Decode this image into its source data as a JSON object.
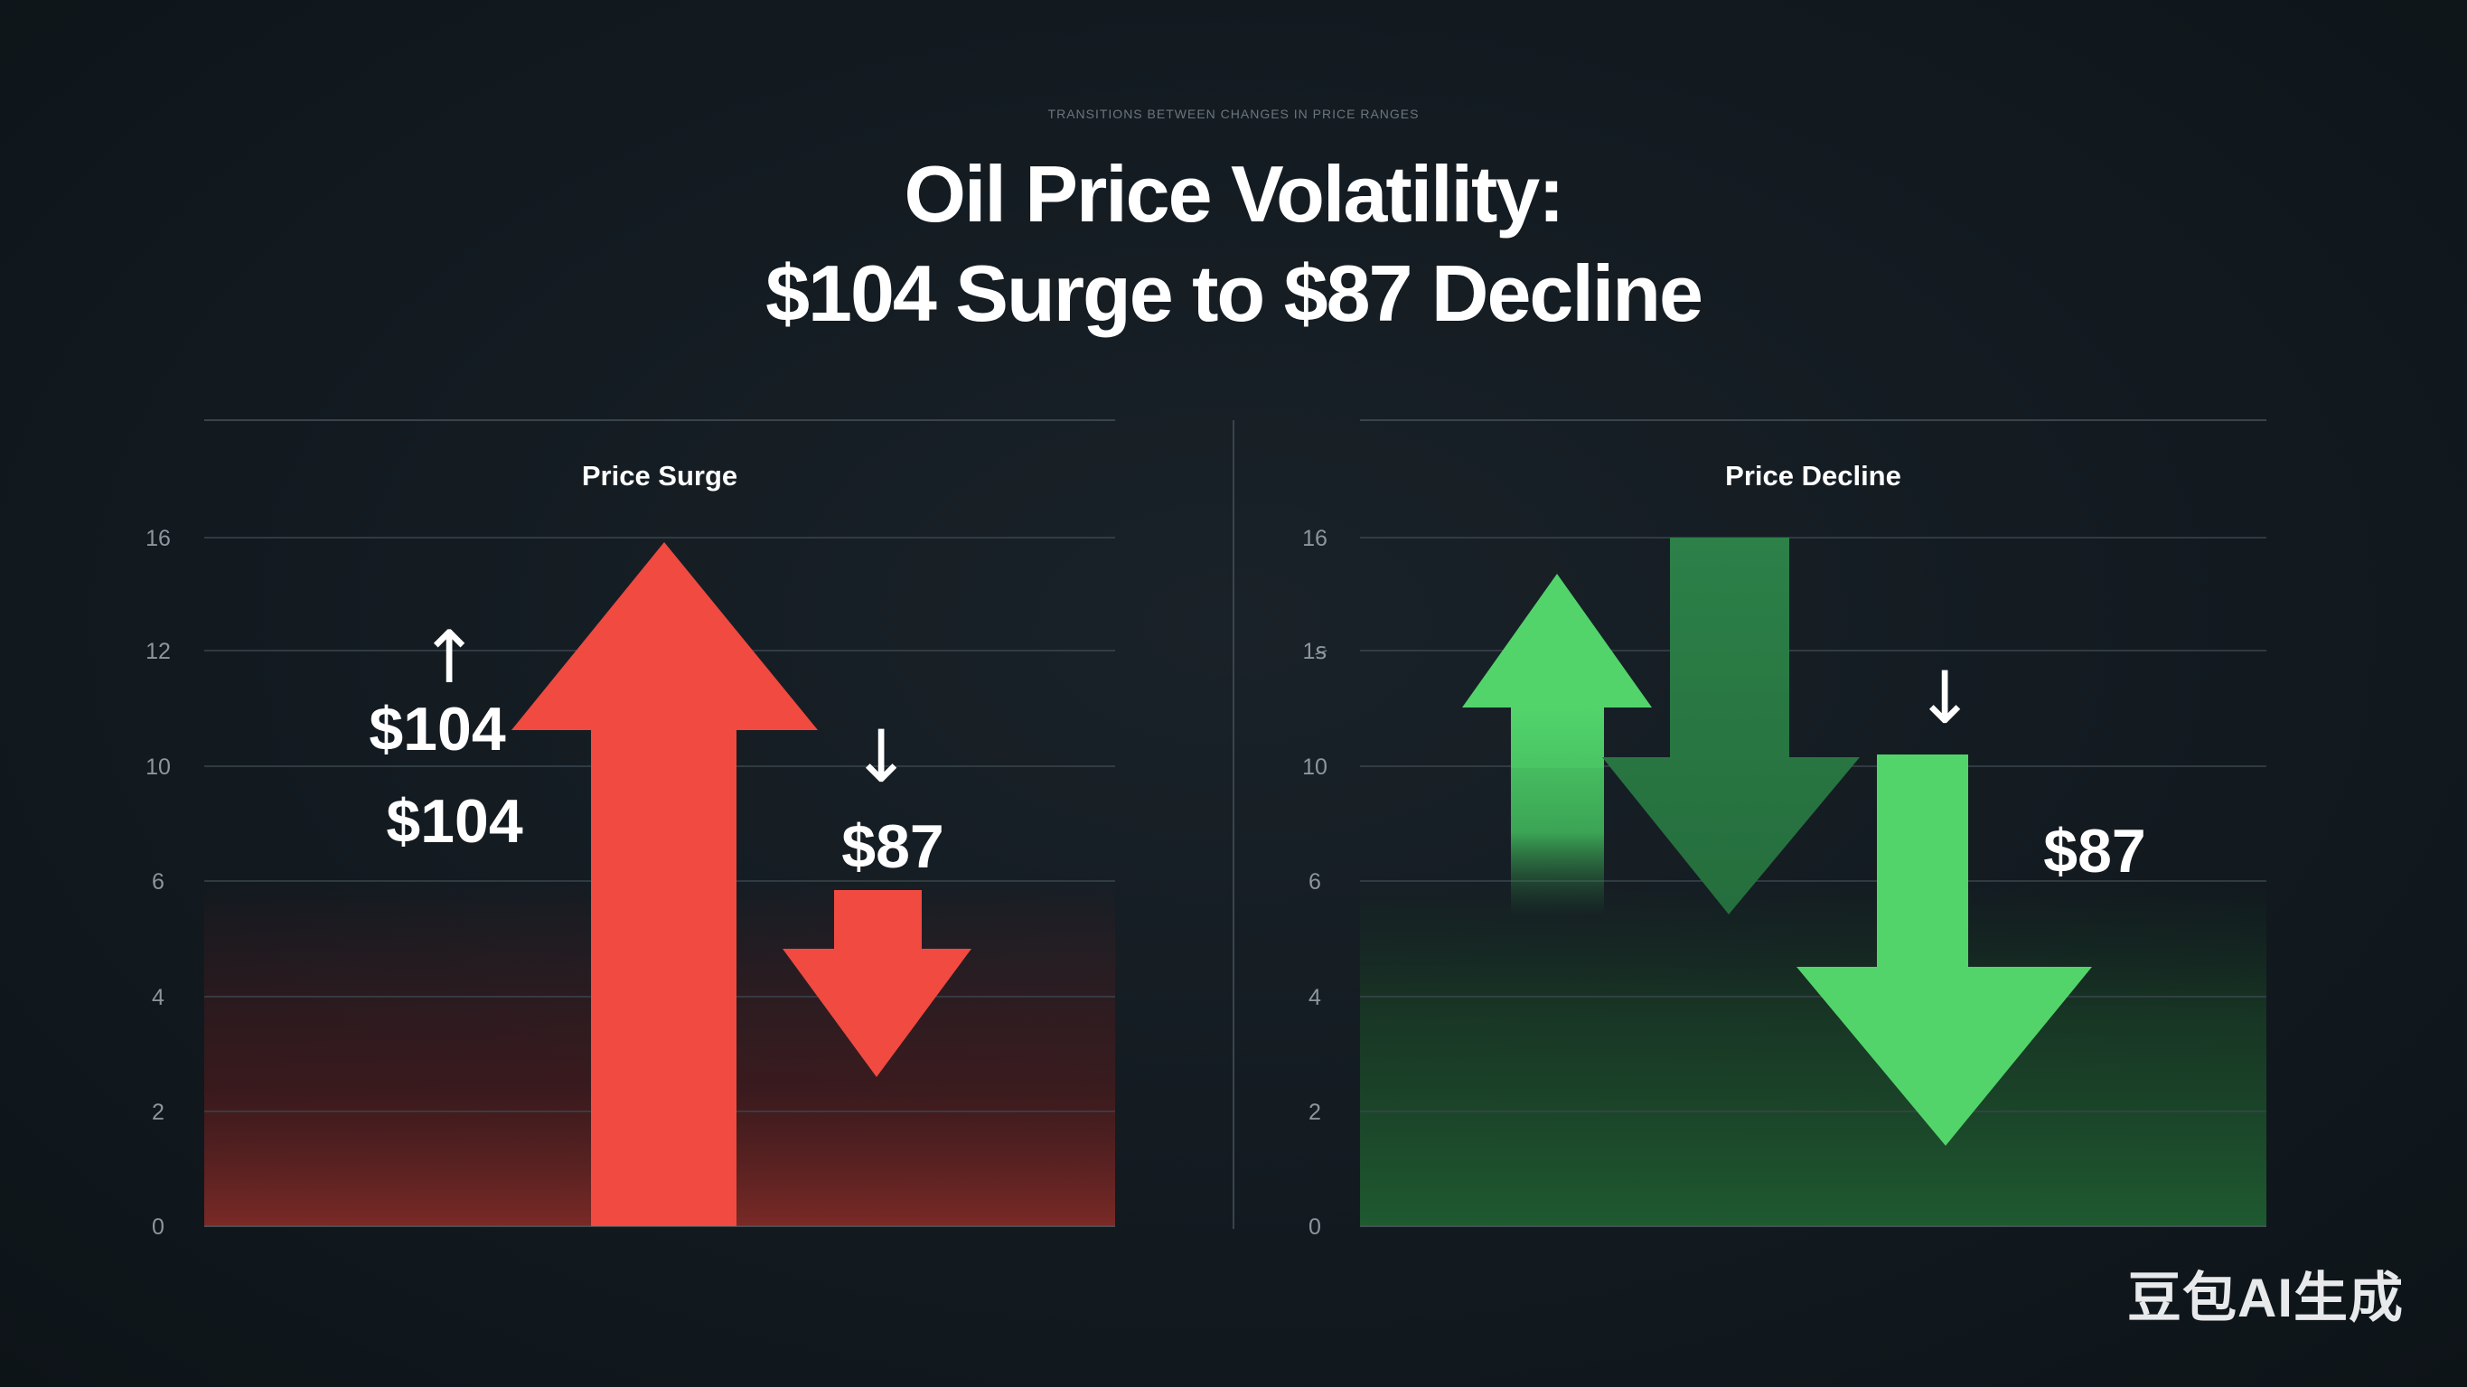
{
  "header": {
    "tagline": "TRANSITIONS BETWEEN CHANGES IN PRICE RANGES",
    "title_line1": "Oil Price Volatility:",
    "title_line2": "$104 Surge to $87 Decline"
  },
  "watermark": "豆包AI生成",
  "colors": {
    "surge_red": "#f04a41",
    "decline_green": "#52d46b",
    "decline_dark_green": "#2c7a48"
  },
  "chart_data": [
    {
      "type": "bar",
      "title": "Price Surge",
      "ylim": [
        0,
        16
      ],
      "yticks": [
        "0",
        "2",
        "4",
        "6",
        "10",
        "12",
        "16"
      ],
      "grid": true,
      "markers": [
        {
          "name": "up-arrow",
          "direction": "up",
          "value": 16
        },
        {
          "name": "down-arrow",
          "direction": "down",
          "value": 5
        }
      ],
      "annotations": [
        {
          "text": "$104",
          "symbol": "↑"
        },
        {
          "text": "$104"
        },
        {
          "text": "$87",
          "symbol": "↓"
        }
      ]
    },
    {
      "type": "bar",
      "title": "Price Decline",
      "ylim": [
        0,
        16
      ],
      "yticks": [
        "0",
        "2",
        "4",
        "6",
        "10",
        "1ꞩ",
        "16"
      ],
      "grid": true,
      "markers": [
        {
          "name": "light-up-arrow",
          "direction": "up",
          "value": 15
        },
        {
          "name": "dark-down-arrow",
          "direction": "down",
          "value": 16
        },
        {
          "name": "green-down-arrow",
          "direction": "down",
          "value": 8
        }
      ],
      "annotations": [
        {
          "text": "$87",
          "symbol": "↓"
        }
      ]
    }
  ]
}
